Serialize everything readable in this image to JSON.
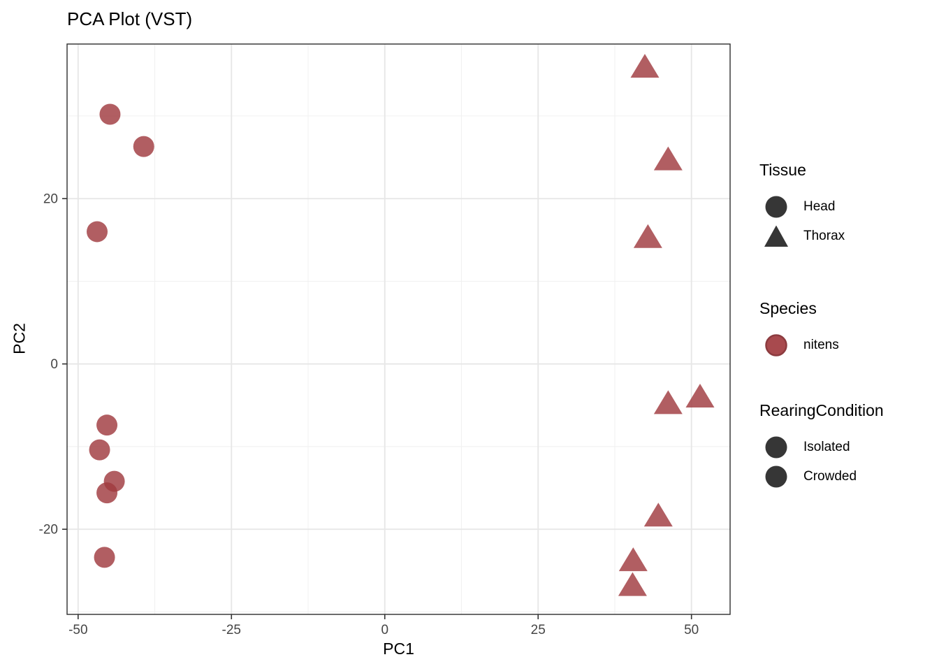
{
  "title": "PCA Plot (VST)",
  "axes": {
    "x_label": "PC1",
    "y_label": "PC2"
  },
  "chart_data": {
    "type": "scatter",
    "title": "PCA Plot (VST)",
    "xlabel": "PC1",
    "ylabel": "PC2",
    "xlim": [
      -51.8,
      56.3
    ],
    "ylim": [
      -30.3,
      38.7
    ],
    "x_ticks": [
      -50,
      -25,
      0,
      25,
      50
    ],
    "y_ticks": [
      -20,
      0,
      20
    ],
    "x_minor_gridlines": [
      -37.5,
      -12.5,
      12.5,
      37.5
    ],
    "y_minor_gridlines": [
      -30,
      -10,
      10,
      30
    ],
    "grid": "major+minor light grey on white panel with dark border",
    "legend_position": "right",
    "point_color": "#A03A40",
    "point_opacity": 0.82,
    "series": [
      {
        "name": "Head",
        "tissue": "Head",
        "species": "nitens",
        "shape": "circle",
        "points": [
          [
            -44.8,
            30.2
          ],
          [
            -39.3,
            26.3
          ],
          [
            -46.9,
            16.0
          ],
          [
            -45.3,
            -7.4
          ],
          [
            -46.5,
            -10.4
          ],
          [
            -44.1,
            -14.2
          ],
          [
            -45.3,
            -15.6
          ],
          [
            -45.7,
            -23.4
          ]
        ]
      },
      {
        "name": "Thorax",
        "tissue": "Thorax",
        "species": "nitens",
        "shape": "triangle",
        "points": [
          [
            42.4,
            35.9
          ],
          [
            46.2,
            24.7
          ],
          [
            42.9,
            15.3
          ],
          [
            46.2,
            -4.8
          ],
          [
            51.4,
            -4.0
          ],
          [
            44.6,
            -18.4
          ],
          [
            40.5,
            -23.8
          ],
          [
            40.4,
            -26.8
          ]
        ]
      }
    ]
  },
  "legend": {
    "groups": [
      {
        "title": "Tissue",
        "items": [
          {
            "label": "Head",
            "shape": "circle",
            "color": "#363636"
          },
          {
            "label": "Thorax",
            "shape": "triangle",
            "color": "#363636"
          }
        ]
      },
      {
        "title": "Species",
        "items": [
          {
            "label": "nitens",
            "shape": "circle",
            "color": "#A84A4E",
            "stroke": "#8C3B3F"
          }
        ]
      },
      {
        "title": "RearingCondition",
        "items": [
          {
            "label": "Isolated",
            "shape": "circle",
            "color": "#363636"
          },
          {
            "label": "Crowded",
            "shape": "circle",
            "color": "#363636"
          }
        ]
      }
    ]
  },
  "colors": {
    "background": "#FFFFFF",
    "panel_border": "#2D2D2D",
    "grid_major": "#E7E7E7",
    "grid_minor": "#F1F1F1",
    "tick": "#333333",
    "tick_label": "#454545",
    "title": "#000000"
  }
}
